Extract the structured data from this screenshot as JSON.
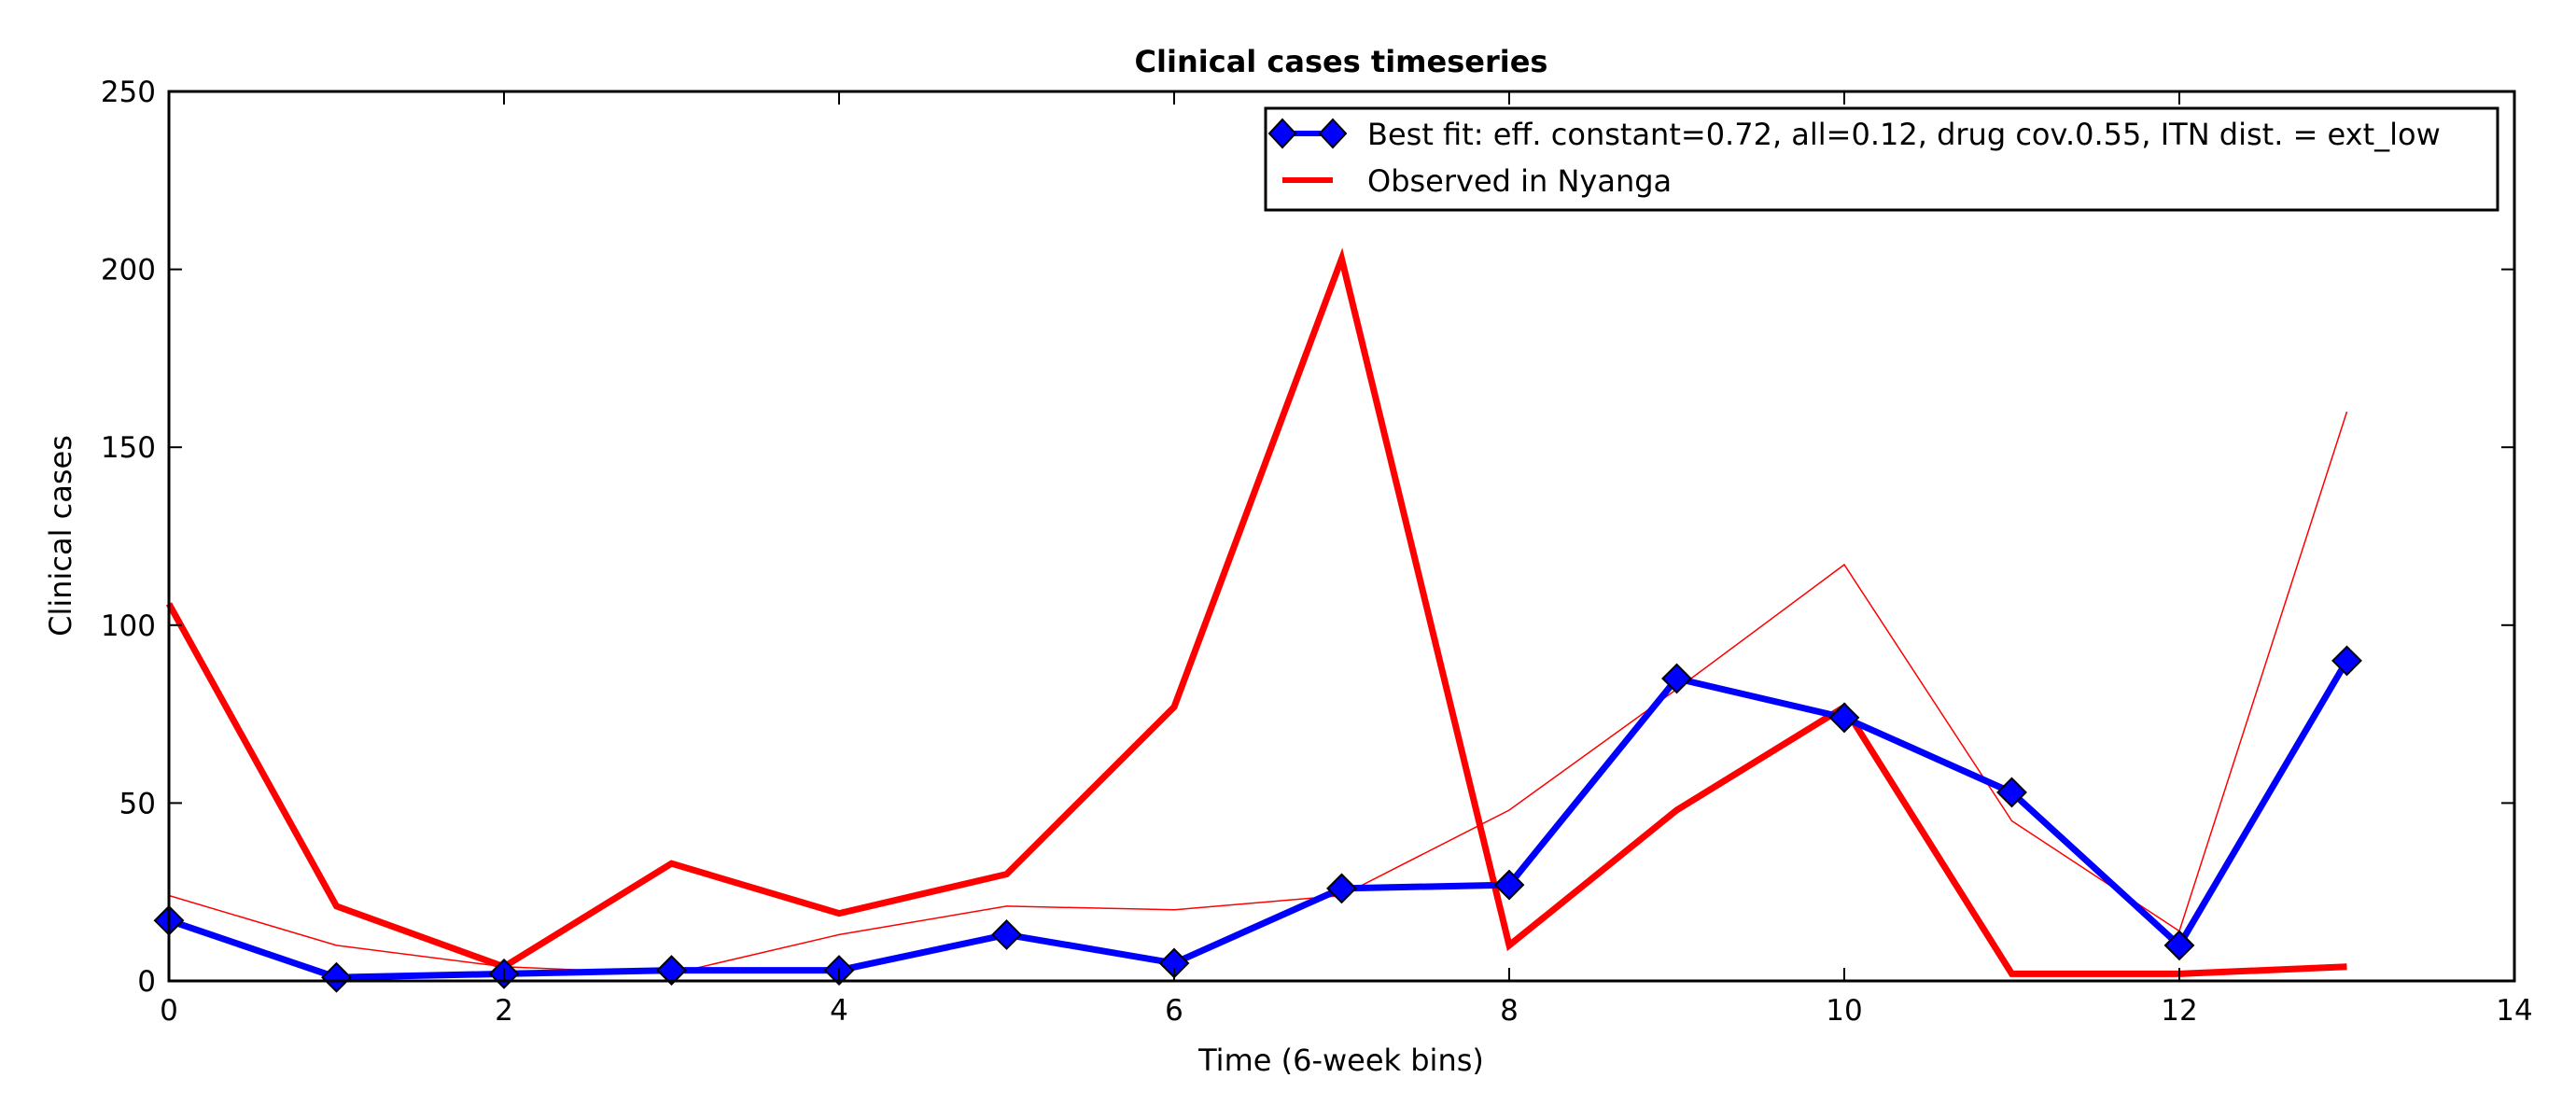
{
  "chart_data": {
    "type": "line",
    "title": "Clinical cases timeseries",
    "xlabel": "Time (6-week bins)",
    "ylabel": "Clinical cases",
    "xlim": [
      0,
      14
    ],
    "ylim": [
      0,
      250
    ],
    "xticks": [
      0,
      2,
      4,
      6,
      8,
      10,
      12,
      14
    ],
    "yticks": [
      0,
      50,
      100,
      150,
      200,
      250
    ],
    "grid": false,
    "legend_position": "top-right",
    "series": [
      {
        "name": "Best fit: eff. constant=0.72, all=0.12, drug cov.0.55, ITN dist. = ext_low",
        "color": "#0000ff",
        "marker": "diamond",
        "x": [
          0,
          1,
          2,
          3,
          4,
          5,
          6,
          7,
          8,
          9,
          10,
          11,
          12,
          13
        ],
        "y": [
          17,
          1,
          2,
          3,
          3,
          13,
          5,
          26,
          27,
          85,
          74,
          53,
          10,
          90
        ]
      },
      {
        "name": "Observed in Nyanga",
        "color": "#ff0000",
        "x": [
          0,
          1,
          2,
          3,
          4,
          5,
          6,
          7,
          8,
          9,
          10,
          11,
          12,
          13
        ],
        "y": [
          106,
          21,
          4,
          33,
          19,
          30,
          77,
          203,
          10,
          48,
          77,
          2,
          2,
          4
        ]
      },
      {
        "color": "#ff0000",
        "thin": true,
        "x": [
          0,
          1,
          2,
          3,
          4,
          5,
          6,
          7,
          8,
          9,
          10,
          11,
          12,
          13
        ],
        "y": [
          24,
          10,
          4,
          2,
          13,
          21,
          20,
          24,
          48,
          82,
          117,
          45,
          14,
          160
        ]
      }
    ]
  }
}
